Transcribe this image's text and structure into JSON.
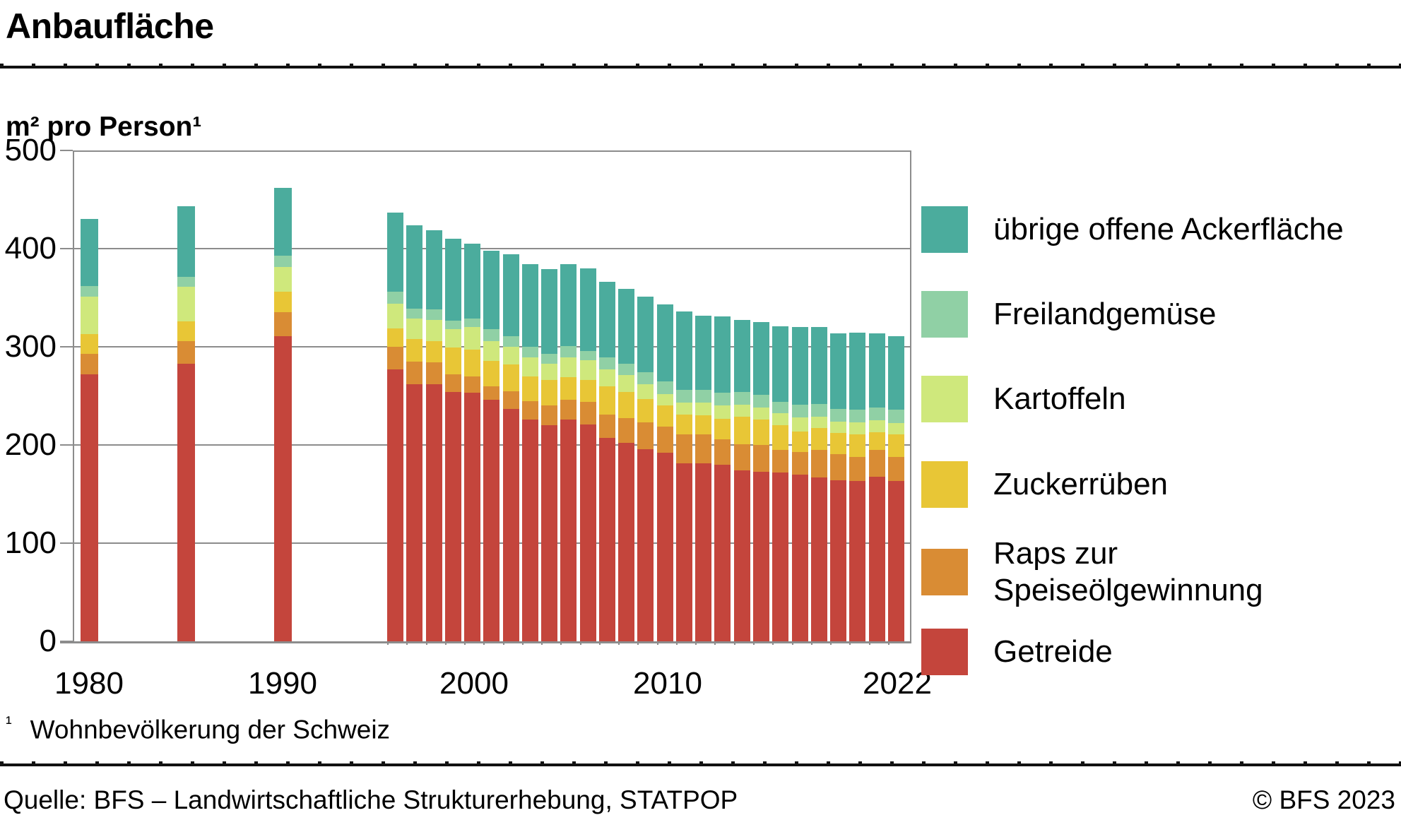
{
  "header": {
    "title": "Anbaufläche",
    "subtitle": "m² pro Person¹"
  },
  "footnote": {
    "marker": "¹",
    "text": "Wohnbevölkerung der Schweiz"
  },
  "footer": {
    "source": "Quelle: BFS – Landwirtschaftliche Strukturerhebung, STATPOP",
    "copyright": "© BFS 2023"
  },
  "colors": {
    "getreide": "#c4453c",
    "raps": "#d98c34",
    "zuckerrueben": "#e8c636",
    "kartoffeln": "#cfe87c",
    "freilandgemuese": "#90d0a5",
    "uebrige_ackerflaeche": "#4bac9d",
    "grid": "#8c8c8c",
    "text": "#000000"
  },
  "legend": {
    "items": [
      {
        "label": "übrige offene Ackerfläche",
        "color": "#4bac9d"
      },
      {
        "label": "Freilandgemüse",
        "color": "#90d0a5"
      },
      {
        "label": "Kartoffeln",
        "color": "#cfe87c"
      },
      {
        "label": "Zuckerrüben",
        "color": "#e8c636"
      },
      {
        "label": "Raps zur\nSpeiseölgewinnung",
        "color": "#d98c34"
      },
      {
        "label": "Getreide",
        "color": "#c4453c"
      }
    ]
  },
  "chart_data": {
    "type": "bar",
    "stacked": true,
    "title": "Anbaufläche",
    "ylabel": "m² pro Person¹",
    "unit": "m² pro Person",
    "ylim": [
      0,
      500
    ],
    "yticks": [
      0,
      100,
      200,
      300,
      400,
      500
    ],
    "grid": true,
    "legend_position": "right",
    "xticklabels": [
      "1980",
      "1990",
      "2000",
      "2010",
      "2022"
    ],
    "categories": [
      "1980",
      "1985",
      "1990",
      "1996",
      "1997",
      "1998",
      "1999",
      "2000",
      "2001",
      "2002",
      "2003",
      "2004",
      "2005",
      "2006",
      "2007",
      "2008",
      "2009",
      "2010",
      "2011",
      "2012",
      "2013",
      "2014",
      "2015",
      "2016",
      "2017",
      "2018",
      "2019",
      "2020",
      "2021",
      "2022"
    ],
    "series": [
      {
        "name": "Getreide",
        "color": "#c4453c",
        "values": [
          272,
          283,
          311,
          277,
          262,
          262,
          254,
          253,
          246,
          237,
          226,
          220,
          226,
          221,
          207,
          202,
          196,
          192,
          181,
          181,
          180,
          174,
          173,
          172,
          170,
          167,
          164,
          163,
          168,
          163
        ]
      },
      {
        "name": "Raps zur Speiseölgewinnung",
        "color": "#d98c34",
        "values": [
          21,
          23,
          24,
          23,
          23,
          22,
          18,
          17,
          14,
          18,
          19,
          20,
          20,
          23,
          24,
          25,
          27,
          27,
          30,
          30,
          26,
          27,
          27,
          23,
          23,
          28,
          27,
          25,
          27,
          25
        ]
      },
      {
        "name": "Zuckerrüben",
        "color": "#e8c636",
        "values": [
          20,
          20,
          21,
          19,
          23,
          22,
          27,
          27,
          26,
          27,
          25,
          26,
          23,
          22,
          29,
          27,
          24,
          21,
          20,
          19,
          21,
          28,
          26,
          25,
          21,
          22,
          21,
          23,
          18,
          23
        ]
      },
      {
        "name": "Kartoffeln",
        "color": "#cfe87c",
        "values": [
          38,
          35,
          25,
          25,
          21,
          21,
          19,
          23,
          20,
          18,
          19,
          17,
          20,
          20,
          17,
          17,
          15,
          12,
          12,
          13,
          13,
          12,
          12,
          12,
          14,
          12,
          12,
          12,
          12,
          11
        ]
      },
      {
        "name": "Freilandgemüse",
        "color": "#90d0a5",
        "values": [
          11,
          10,
          12,
          12,
          10,
          11,
          9,
          9,
          12,
          11,
          11,
          10,
          12,
          10,
          12,
          12,
          12,
          13,
          13,
          13,
          13,
          13,
          13,
          12,
          13,
          13,
          13,
          13,
          13,
          14
        ]
      },
      {
        "name": "übrige offene Ackerfläche",
        "color": "#4bac9d",
        "values": [
          68,
          72,
          69,
          81,
          85,
          81,
          83,
          76,
          80,
          83,
          84,
          86,
          83,
          84,
          77,
          76,
          77,
          78,
          80,
          76,
          78,
          73,
          74,
          77,
          79,
          78,
          77,
          78,
          76,
          75
        ]
      }
    ],
    "totals": [
      430,
      443,
      462,
      437,
      424,
      419,
      410,
      405,
      398,
      394,
      384,
      379,
      384,
      380,
      366,
      359,
      351,
      343,
      336,
      332,
      331,
      327,
      325,
      321,
      320,
      320,
      314,
      314,
      314,
      311
    ]
  }
}
